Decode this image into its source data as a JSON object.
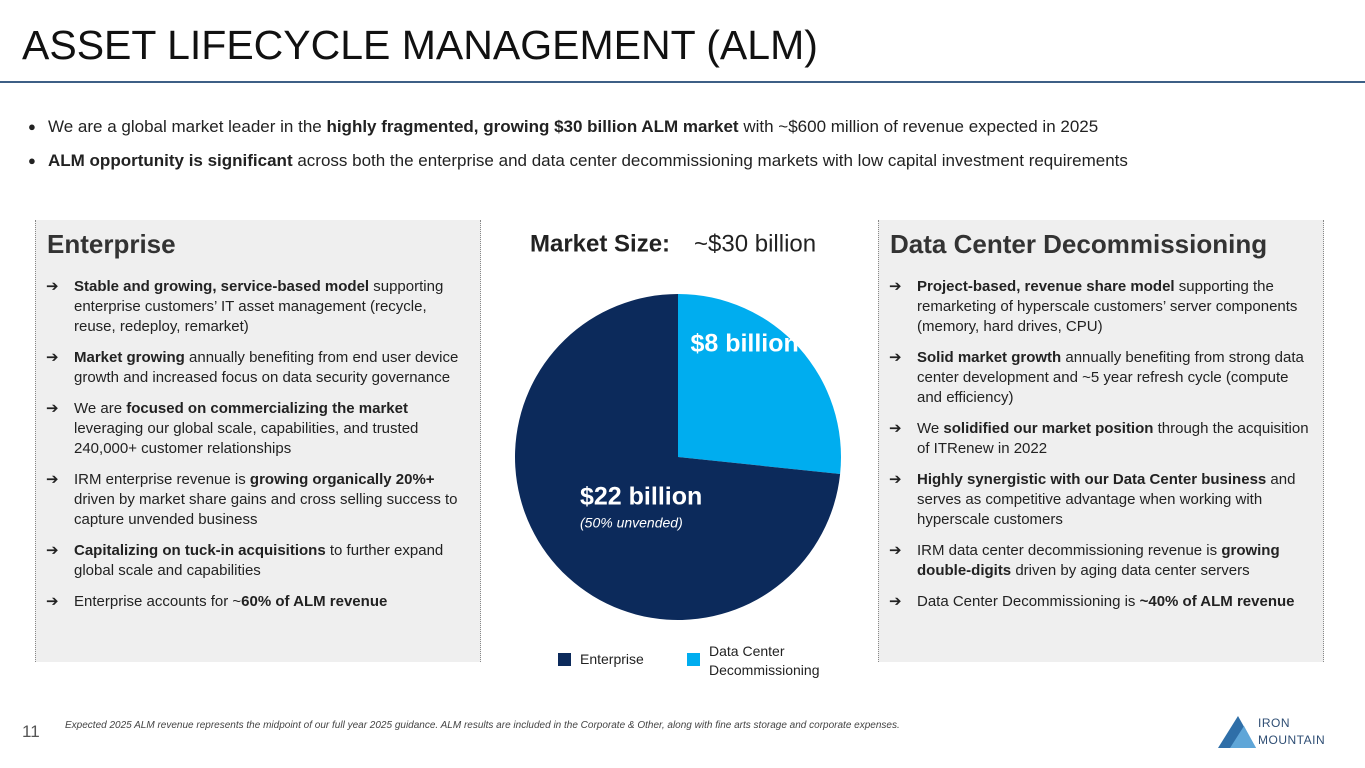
{
  "header": {
    "title": "ASSET LIFECYCLE MANAGEMENT (ALM)"
  },
  "intro": [
    [
      {
        "t": "We are a global market leader in the ",
        "b": false
      },
      {
        "t": "highly fragmented, growing $30 billion ALM market",
        "b": true
      },
      {
        "t": " with ~$600 million of revenue expected in 2025",
        "b": false
      }
    ],
    [
      {
        "t": "ALM opportunity is significant",
        "b": true
      },
      {
        "t": " across both the enterprise and data center decommissioning markets with low capital investment requirements",
        "b": false
      }
    ]
  ],
  "enterprise": {
    "heading": "Enterprise",
    "bullets": [
      [
        {
          "t": "Stable and growing, service-based model",
          "b": true
        },
        {
          "t": " supporting enterprise customers’ IT asset management (recycle, reuse, redeploy, remarket)",
          "b": false
        }
      ],
      [
        {
          "t": "Market growing",
          "b": true
        },
        {
          "t": " annually benefiting from end user device growth and increased focus on data security governance",
          "b": false
        }
      ],
      [
        {
          "t": "We are ",
          "b": false
        },
        {
          "t": "focused on commercializing the market",
          "b": true
        },
        {
          "t": " leveraging our global scale, capabilities, and trusted 240,000+ customer relationships",
          "b": false
        }
      ],
      [
        {
          "t": "IRM enterprise revenue is ",
          "b": false
        },
        {
          "t": "growing organically 20%+",
          "b": true
        },
        {
          "t": " driven by market share gains and cross selling success to capture unvended business",
          "b": false
        }
      ],
      [
        {
          "t": "Capitalizing on tuck-in acquisitions",
          "b": true
        },
        {
          "t": " to further expand global scale and capabilities",
          "b": false
        }
      ],
      [
        {
          "t": "Enterprise accounts for ~",
          "b": false
        },
        {
          "t": "60% of ALM revenue",
          "b": true
        }
      ]
    ]
  },
  "datacenter": {
    "heading": "Data Center Decommissioning",
    "bullets": [
      [
        {
          "t": "Project-based, revenue share model",
          "b": true
        },
        {
          "t": " supporting the remarketing of hyperscale customers’ server components (memory, hard drives, CPU)",
          "b": false
        }
      ],
      [
        {
          "t": "Solid market growth",
          "b": true
        },
        {
          "t": " annually benefiting from strong data center development and ~5 year refresh cycle (compute and efficiency)",
          "b": false
        }
      ],
      [
        {
          "t": "We ",
          "b": false
        },
        {
          "t": "solidified our market position",
          "b": true
        },
        {
          "t": " through the acquisition of ITRenew in 2022",
          "b": false
        }
      ],
      [
        {
          "t": "Highly synergistic with our Data Center business",
          "b": true
        },
        {
          "t": " and serves as competitive advantage when working with hyperscale customers",
          "b": false
        }
      ],
      [
        {
          "t": "IRM data center decommissioning revenue is ",
          "b": false
        },
        {
          "t": "growing double-digits",
          "b": true
        },
        {
          "t": " driven by aging data center servers",
          "b": false
        }
      ],
      [
        {
          "t": "Data Center Decommissioning is ",
          "b": false
        },
        {
          "t": "~40% of ALM revenue",
          "b": true
        }
      ]
    ]
  },
  "chart_data": {
    "type": "pie",
    "title": "Market Size:",
    "subtitle": "~$30 billion",
    "categories": [
      "Enterprise",
      "Data Center Decommissioning"
    ],
    "values": [
      22,
      8
    ],
    "value_labels": [
      "$22 billion",
      "$8 billion"
    ],
    "colors": [
      "#0c2a5b",
      "#00adef"
    ],
    "annotations": [
      "(50% unvended)"
    ]
  },
  "footer": {
    "page": "11",
    "note": "Expected 2025 ALM revenue represents the midpoint of our full year 2025 guidance.  ALM results are included in the Corporate & Other, along with fine arts storage and corporate expenses.",
    "logo": [
      "IRON",
      "MOUNTAIN"
    ]
  }
}
